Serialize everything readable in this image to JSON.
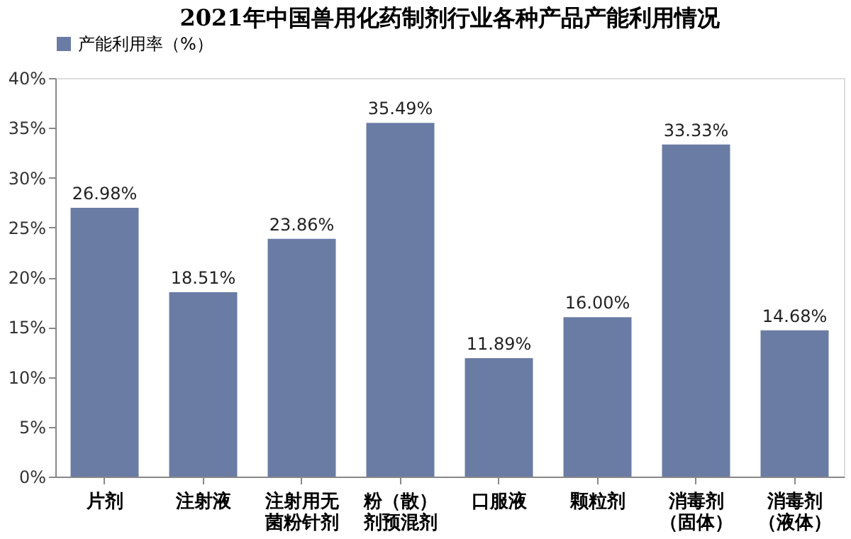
{
  "chart_data": {
    "type": "bar",
    "title": "2021年中国兽用化药制剂行业各种产品产能利用情况",
    "categories": [
      "片剂",
      "注射液",
      "注射用无菌粉针剂",
      "粉（散）剂预混剂",
      "口服液",
      "颗粒剂",
      "消毒剂（固体）",
      "消毒剂（液体）"
    ],
    "series": [
      {
        "name": "产能利用率（%）",
        "color": "#6a7ca4",
        "values": [
          26.98,
          18.51,
          23.86,
          35.49,
          11.89,
          16.0,
          33.33,
          14.68
        ],
        "value_labels": [
          "26.98%",
          "18.51%",
          "23.86%",
          "35.49%",
          "11.89%",
          "16.00%",
          "33.33%",
          "14.68%"
        ]
      }
    ],
    "ylim": [
      0,
      40
    ],
    "yticks": [
      {
        "value": 0,
        "label": "0%"
      },
      {
        "value": 5,
        "label": "5%"
      },
      {
        "value": 10,
        "label": "10%"
      },
      {
        "value": 15,
        "label": "15%"
      },
      {
        "value": 20,
        "label": "20%"
      },
      {
        "value": 25,
        "label": "25%"
      },
      {
        "value": 30,
        "label": "30%"
      },
      {
        "value": 35,
        "label": "35%"
      },
      {
        "value": 40,
        "label": "40%"
      }
    ],
    "grid": false,
    "legend": "top"
  }
}
